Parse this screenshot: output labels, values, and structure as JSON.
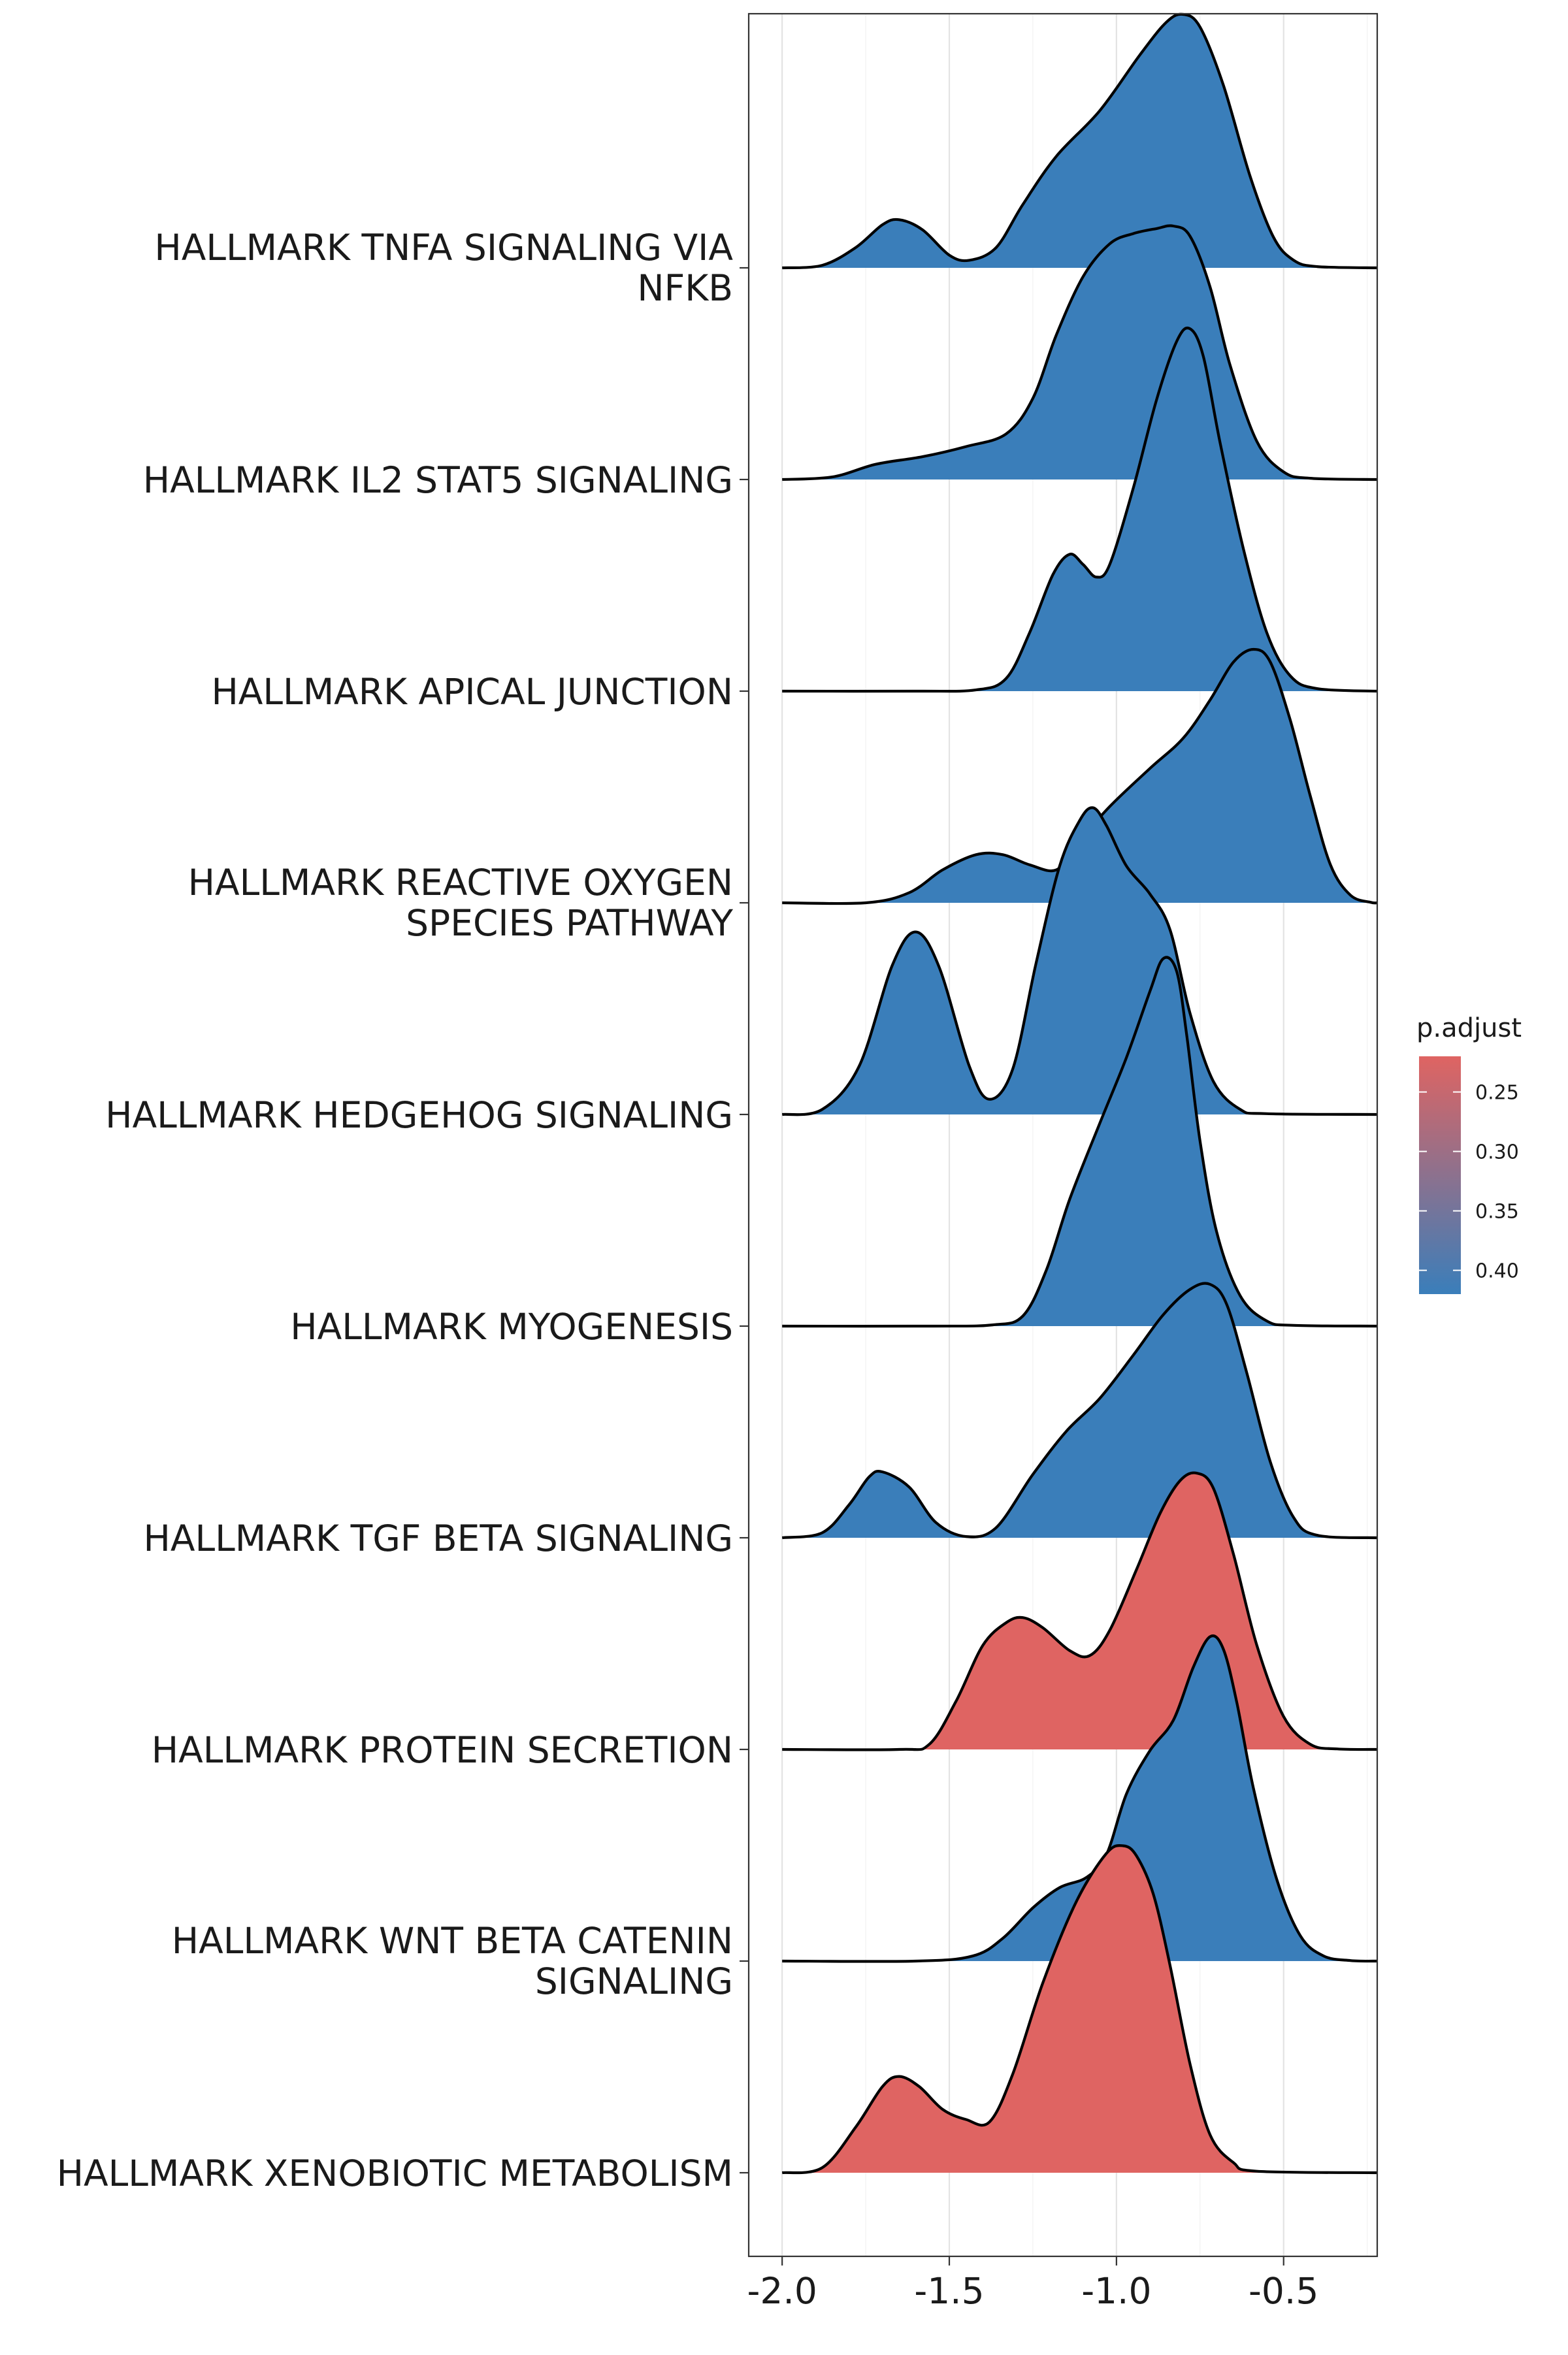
{
  "chart_data": {
    "type": "ridgeline",
    "xlabel": "",
    "ylabel": "",
    "x_ticks": [
      -2.0,
      -1.5,
      -1.0,
      -0.5
    ],
    "x_tick_labels": [
      "-2.0",
      "-1.5",
      "-1.0",
      "-0.5"
    ],
    "xlim": [
      -2.1,
      -0.22
    ],
    "grid": true,
    "series": [
      {
        "name_lines": [
          "HALLMARK TNFA SIGNALING VIA",
          "NFKB"
        ],
        "p_adjust": 0.4,
        "color": "#3A7EBA",
        "density": [
          [
            -2.0,
            0
          ],
          [
            -1.88,
            0.01
          ],
          [
            -1.78,
            0.08
          ],
          [
            -1.7,
            0.17
          ],
          [
            -1.65,
            0.19
          ],
          [
            -1.58,
            0.15
          ],
          [
            -1.5,
            0.05
          ],
          [
            -1.44,
            0.03
          ],
          [
            -1.36,
            0.08
          ],
          [
            -1.28,
            0.25
          ],
          [
            -1.18,
            0.44
          ],
          [
            -1.05,
            0.62
          ],
          [
            -0.93,
            0.84
          ],
          [
            -0.85,
            0.97
          ],
          [
            -0.8,
            1.0
          ],
          [
            -0.75,
            0.95
          ],
          [
            -0.68,
            0.72
          ],
          [
            -0.6,
            0.36
          ],
          [
            -0.53,
            0.12
          ],
          [
            -0.47,
            0.03
          ],
          [
            -0.4,
            0.005
          ],
          [
            -0.22,
            0
          ]
        ]
      },
      {
        "name_lines": [
          "HALLMARK IL2 STAT5 SIGNALING"
        ],
        "p_adjust": 0.4,
        "color": "#3A7EBA",
        "density": [
          [
            -2.0,
            0
          ],
          [
            -1.85,
            0.01
          ],
          [
            -1.72,
            0.06
          ],
          [
            -1.58,
            0.09
          ],
          [
            -1.45,
            0.13
          ],
          [
            -1.33,
            0.18
          ],
          [
            -1.25,
            0.32
          ],
          [
            -1.18,
            0.57
          ],
          [
            -1.1,
            0.8
          ],
          [
            -1.02,
            0.93
          ],
          [
            -0.95,
            0.97
          ],
          [
            -0.88,
            0.99
          ],
          [
            -0.83,
            1.0
          ],
          [
            -0.78,
            0.96
          ],
          [
            -0.72,
            0.76
          ],
          [
            -0.66,
            0.45
          ],
          [
            -0.58,
            0.15
          ],
          [
            -0.5,
            0.03
          ],
          [
            -0.42,
            0.005
          ],
          [
            -0.22,
            0
          ]
        ]
      },
      {
        "name_lines": [
          "HALLMARK APICAL JUNCTION"
        ],
        "p_adjust": 0.4,
        "color": "#3A7EBA",
        "density": [
          [
            -2.0,
            0
          ],
          [
            -1.6,
            0
          ],
          [
            -1.42,
            0.005
          ],
          [
            -1.33,
            0.05
          ],
          [
            -1.26,
            0.23
          ],
          [
            -1.19,
            0.46
          ],
          [
            -1.14,
            0.54
          ],
          [
            -1.1,
            0.5
          ],
          [
            -1.06,
            0.45
          ],
          [
            -1.02,
            0.5
          ],
          [
            -0.95,
            0.8
          ],
          [
            -0.88,
            1.15
          ],
          [
            -0.82,
            1.38
          ],
          [
            -0.78,
            1.43
          ],
          [
            -0.74,
            1.32
          ],
          [
            -0.69,
            0.98
          ],
          [
            -0.62,
            0.56
          ],
          [
            -0.55,
            0.23
          ],
          [
            -0.48,
            0.06
          ],
          [
            -0.4,
            0.01
          ],
          [
            -0.22,
            0
          ]
        ]
      },
      {
        "name_lines": [
          "HALLMARK REACTIVE OXYGEN",
          "SPECIES PATHWAY"
        ],
        "p_adjust": 0.4,
        "color": "#3A7EBA",
        "density": [
          [
            -2.0,
            0
          ],
          [
            -1.75,
            0
          ],
          [
            -1.62,
            0.04
          ],
          [
            -1.52,
            0.13
          ],
          [
            -1.42,
            0.19
          ],
          [
            -1.34,
            0.19
          ],
          [
            -1.26,
            0.15
          ],
          [
            -1.18,
            0.13
          ],
          [
            -1.12,
            0.23
          ],
          [
            -1.02,
            0.38
          ],
          [
            -0.9,
            0.53
          ],
          [
            -0.8,
            0.65
          ],
          [
            -0.72,
            0.8
          ],
          [
            -0.65,
            0.95
          ],
          [
            -0.59,
            1.0
          ],
          [
            -0.54,
            0.95
          ],
          [
            -0.48,
            0.72
          ],
          [
            -0.42,
            0.42
          ],
          [
            -0.36,
            0.15
          ],
          [
            -0.3,
            0.03
          ],
          [
            -0.24,
            0.002
          ],
          [
            -0.22,
            0
          ]
        ]
      },
      {
        "name_lines": [
          "HALLMARK HEDGEHOG SIGNALING"
        ],
        "p_adjust": 0.4,
        "color": "#3A7EBA",
        "density": [
          [
            -2.0,
            0
          ],
          [
            -1.88,
            0.02
          ],
          [
            -1.77,
            0.19
          ],
          [
            -1.67,
            0.59
          ],
          [
            -1.6,
            0.72
          ],
          [
            -1.53,
            0.58
          ],
          [
            -1.44,
            0.19
          ],
          [
            -1.38,
            0.06
          ],
          [
            -1.31,
            0.18
          ],
          [
            -1.24,
            0.6
          ],
          [
            -1.17,
            0.98
          ],
          [
            -1.11,
            1.16
          ],
          [
            -1.07,
            1.21
          ],
          [
            -1.03,
            1.14
          ],
          [
            -0.97,
            0.98
          ],
          [
            -0.9,
            0.87
          ],
          [
            -0.84,
            0.73
          ],
          [
            -0.78,
            0.4
          ],
          [
            -0.71,
            0.13
          ],
          [
            -0.63,
            0.02
          ],
          [
            -0.55,
            0.003
          ],
          [
            -0.22,
            0
          ]
        ]
      },
      {
        "name_lines": [
          "HALLMARK MYOGENESIS"
        ],
        "p_adjust": 0.4,
        "color": "#3A7EBA",
        "density": [
          [
            -2.0,
            0
          ],
          [
            -1.55,
            0
          ],
          [
            -1.37,
            0.005
          ],
          [
            -1.28,
            0.04
          ],
          [
            -1.21,
            0.22
          ],
          [
            -1.14,
            0.5
          ],
          [
            -1.05,
            0.8
          ],
          [
            -0.97,
            1.06
          ],
          [
            -0.9,
            1.32
          ],
          [
            -0.86,
            1.45
          ],
          [
            -0.82,
            1.4
          ],
          [
            -0.79,
            1.15
          ],
          [
            -0.75,
            0.73
          ],
          [
            -0.7,
            0.37
          ],
          [
            -0.63,
            0.12
          ],
          [
            -0.55,
            0.02
          ],
          [
            -0.47,
            0.003
          ],
          [
            -0.22,
            0
          ]
        ]
      },
      {
        "name_lines": [
          "HALLMARK TGF BETA SIGNALING"
        ],
        "p_adjust": 0.4,
        "color": "#3A7EBA",
        "density": [
          [
            -2.0,
            0
          ],
          [
            -1.88,
            0.02
          ],
          [
            -1.8,
            0.13
          ],
          [
            -1.74,
            0.24
          ],
          [
            -1.7,
            0.26
          ],
          [
            -1.62,
            0.2
          ],
          [
            -1.54,
            0.06
          ],
          [
            -1.45,
            0.005
          ],
          [
            -1.36,
            0.04
          ],
          [
            -1.25,
            0.25
          ],
          [
            -1.15,
            0.42
          ],
          [
            -1.05,
            0.55
          ],
          [
            -0.95,
            0.72
          ],
          [
            -0.86,
            0.88
          ],
          [
            -0.78,
            0.98
          ],
          [
            -0.72,
            1.0
          ],
          [
            -0.67,
            0.92
          ],
          [
            -0.61,
            0.65
          ],
          [
            -0.54,
            0.3
          ],
          [
            -0.47,
            0.08
          ],
          [
            -0.4,
            0.01
          ],
          [
            -0.22,
            0
          ]
        ]
      },
      {
        "name_lines": [
          "HALLMARK PROTEIN SECRETION"
        ],
        "p_adjust": 0.25,
        "color": "#DF6462",
        "density": [
          [
            -2.0,
            0
          ],
          [
            -1.65,
            0
          ],
          [
            -1.56,
            0.02
          ],
          [
            -1.48,
            0.19
          ],
          [
            -1.4,
            0.41
          ],
          [
            -1.33,
            0.5
          ],
          [
            -1.28,
            0.52
          ],
          [
            -1.22,
            0.48
          ],
          [
            -1.14,
            0.39
          ],
          [
            -1.08,
            0.37
          ],
          [
            -1.02,
            0.47
          ],
          [
            -0.94,
            0.71
          ],
          [
            -0.87,
            0.93
          ],
          [
            -0.81,
            1.06
          ],
          [
            -0.76,
            1.09
          ],
          [
            -0.71,
            1.03
          ],
          [
            -0.65,
            0.77
          ],
          [
            -0.58,
            0.41
          ],
          [
            -0.5,
            0.13
          ],
          [
            -0.42,
            0.02
          ],
          [
            -0.34,
            0.002
          ],
          [
            -0.22,
            0
          ]
        ]
      },
      {
        "name_lines": [
          "HALLMARK WNT BETA CATENIN",
          "SIGNALING"
        ],
        "p_adjust": 0.4,
        "color": "#3A7EBA",
        "density": [
          [
            -2.0,
            0
          ],
          [
            -1.6,
            0
          ],
          [
            -1.43,
            0.02
          ],
          [
            -1.34,
            0.09
          ],
          [
            -1.25,
            0.21
          ],
          [
            -1.17,
            0.29
          ],
          [
            -1.09,
            0.33
          ],
          [
            -1.03,
            0.42
          ],
          [
            -0.97,
            0.66
          ],
          [
            -0.9,
            0.83
          ],
          [
            -0.83,
            0.95
          ],
          [
            -0.77,
            1.16
          ],
          [
            -0.72,
            1.28
          ],
          [
            -0.68,
            1.23
          ],
          [
            -0.64,
            1.02
          ],
          [
            -0.59,
            0.68
          ],
          [
            -0.52,
            0.32
          ],
          [
            -0.45,
            0.1
          ],
          [
            -0.38,
            0.02
          ],
          [
            -0.3,
            0.002
          ],
          [
            -0.22,
            0
          ]
        ]
      },
      {
        "name_lines": [
          "HALLMARK XENOBIOTIC METABOLISM"
        ],
        "p_adjust": 0.25,
        "color": "#DF6462",
        "density": [
          [
            -2.0,
            0
          ],
          [
            -1.88,
            0.02
          ],
          [
            -1.78,
            0.18
          ],
          [
            -1.7,
            0.34
          ],
          [
            -1.65,
            0.38
          ],
          [
            -1.59,
            0.34
          ],
          [
            -1.52,
            0.25
          ],
          [
            -1.45,
            0.21
          ],
          [
            -1.38,
            0.2
          ],
          [
            -1.31,
            0.39
          ],
          [
            -1.22,
            0.75
          ],
          [
            -1.12,
            1.07
          ],
          [
            -1.03,
            1.26
          ],
          [
            -0.98,
            1.29
          ],
          [
            -0.94,
            1.25
          ],
          [
            -0.89,
            1.1
          ],
          [
            -0.84,
            0.82
          ],
          [
            -0.78,
            0.43
          ],
          [
            -0.72,
            0.15
          ],
          [
            -0.65,
            0.04
          ],
          [
            -0.58,
            0.006
          ],
          [
            -0.22,
            0
          ]
        ]
      }
    ],
    "legend": {
      "title": "p.adjust",
      "placement": "right",
      "ticks": [
        "0.25",
        "0.30",
        "0.35",
        "0.40"
      ],
      "tick_values": [
        0.25,
        0.3,
        0.35,
        0.4
      ],
      "range": [
        0.22,
        0.42
      ],
      "color_low": "#DF6462",
      "color_high": "#3A7EBA"
    }
  }
}
